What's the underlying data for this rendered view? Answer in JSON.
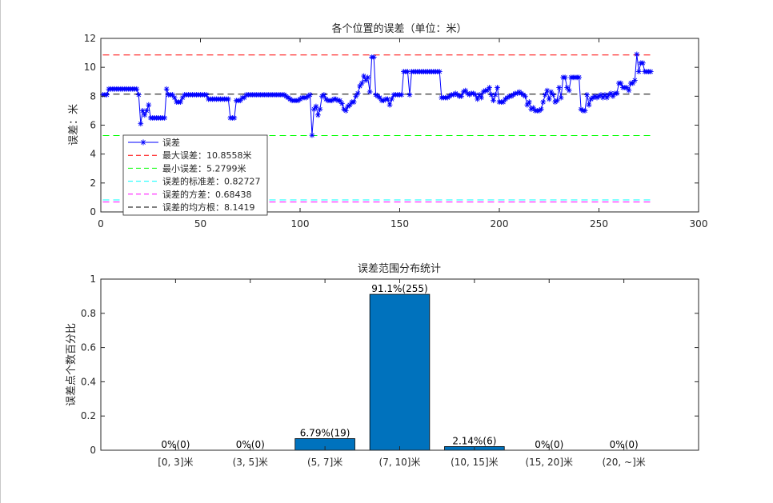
{
  "chart_data": [
    {
      "type": "line",
      "title": "各个位置的误差（单位：米）",
      "xlabel": "",
      "ylabel": "误差：米",
      "xlim": [
        0,
        300
      ],
      "ylim": [
        0,
        12
      ],
      "xticks": [
        0,
        50,
        100,
        150,
        200,
        250,
        300
      ],
      "yticks": [
        0,
        2,
        4,
        6,
        8,
        10,
        12
      ],
      "legend_position": "bottom-left",
      "series": [
        {
          "name": "误差",
          "color": "#0000ff",
          "marker": "asterisk",
          "x_start": 1,
          "x_step": 1,
          "values": [
            8.1,
            8.1,
            8.1,
            8.5,
            8.5,
            8.5,
            8.5,
            8.5,
            8.5,
            8.5,
            8.5,
            8.5,
            8.5,
            8.5,
            8.5,
            8.5,
            8.5,
            8.5,
            8.1,
            6.1,
            7.0,
            6.7,
            7.0,
            7.4,
            6.5,
            6.5,
            6.5,
            6.5,
            6.5,
            6.5,
            6.5,
            6.5,
            8.5,
            8.1,
            8.1,
            8.1,
            7.9,
            7.6,
            7.6,
            7.6,
            7.9,
            8.1,
            8.1,
            8.1,
            8.1,
            8.1,
            8.1,
            8.1,
            8.1,
            8.1,
            8.1,
            8.1,
            8.1,
            7.8,
            7.8,
            7.8,
            7.8,
            7.8,
            7.8,
            7.8,
            7.8,
            7.8,
            7.8,
            7.8,
            6.5,
            6.5,
            6.5,
            7.7,
            7.7,
            7.7,
            7.9,
            7.9,
            8.1,
            8.1,
            8.1,
            8.1,
            8.1,
            8.1,
            8.1,
            8.1,
            8.1,
            8.1,
            8.1,
            8.1,
            8.1,
            8.1,
            8.1,
            8.1,
            8.1,
            8.1,
            8.1,
            8.1,
            8.0,
            7.9,
            7.8,
            7.7,
            7.7,
            7.7,
            7.7,
            7.8,
            7.9,
            7.9,
            7.9,
            8.0,
            8.1,
            5.3,
            7.1,
            7.3,
            6.7,
            7.1,
            8.0,
            8.1,
            7.8,
            7.7,
            7.7,
            7.7,
            7.8,
            7.8,
            7.7,
            7.7,
            7.5,
            7.1,
            7.0,
            7.3,
            7.4,
            7.6,
            7.6,
            8.0,
            8.2,
            8.7,
            8.9,
            9.4,
            9.1,
            9.3,
            8.3,
            10.7,
            10.7,
            8.1,
            8.0,
            7.9,
            7.7,
            7.7,
            7.8,
            7.8,
            7.4,
            7.8,
            8.1,
            8.1,
            8.1,
            8.1,
            8.1,
            9.7,
            9.7,
            9.7,
            8.1,
            9.7,
            9.7,
            9.7,
            9.7,
            9.7,
            9.7,
            9.7,
            9.7,
            9.7,
            9.7,
            9.7,
            9.7,
            9.7,
            9.7,
            9.7,
            7.9,
            7.9,
            7.9,
            7.9,
            8.0,
            8.1,
            8.1,
            8.2,
            8.1,
            8.0,
            8.0,
            8.3,
            8.4,
            8.2,
            8.1,
            8.2,
            8.2,
            8.1,
            7.8,
            8.1,
            7.9,
            8.3,
            8.4,
            8.4,
            8.6,
            8.1,
            7.7,
            8.1,
            8.6,
            7.6,
            7.6,
            7.6,
            7.8,
            7.9,
            8.0,
            8.0,
            8.1,
            8.2,
            8.2,
            8.3,
            8.2,
            8.1,
            8.0,
            7.4,
            7.6,
            7.1,
            7.2,
            7.0,
            7.0,
            7.0,
            7.1,
            7.6,
            8.1,
            8.4,
            7.8,
            8.3,
            8.1,
            7.6,
            7.7,
            8.6,
            7.9,
            9.3,
            9.3,
            8.6,
            8.4,
            9.3,
            9.3,
            9.3,
            9.3,
            9.3,
            7.1,
            7.0,
            7.0,
            8.1,
            7.4,
            7.8,
            7.9,
            8.0,
            7.9,
            8.0,
            8.1,
            7.9,
            8.1,
            7.9,
            8.1,
            8.2,
            8.0,
            8.2,
            8.2,
            8.9,
            8.9,
            8.6,
            8.6,
            8.6,
            8.4,
            8.9,
            8.9,
            9.1,
            10.9,
            9.7,
            10.3,
            10.3,
            9.7,
            9.7,
            9.7,
            9.7
          ]
        },
        {
          "name": "最大误差：10.8558米",
          "color": "#ff0000",
          "style": "dashed",
          "value": 10.8558
        },
        {
          "name": "最小误差：5.2799米",
          "color": "#00ff00",
          "style": "dashed",
          "value": 5.2799
        },
        {
          "name": "误差的标准差：0.82727",
          "color": "#00ffff",
          "style": "dashed",
          "value": 0.82727
        },
        {
          "name": "误差的方差：0.68438",
          "color": "#ff00ff",
          "style": "dashed",
          "value": 0.68438
        },
        {
          "name": "误差的均方根：8.1419",
          "color": "#000000",
          "style": "dashed",
          "value": 8.1419
        }
      ]
    },
    {
      "type": "bar",
      "title": "误差范围分布统计",
      "xlabel": "",
      "ylabel": "误差点个数百分比",
      "ylim": [
        0,
        1
      ],
      "yticks": [
        "0",
        "0.2",
        "0.4",
        "0.6",
        "0.8",
        "1"
      ],
      "bar_color": "#0072bd",
      "categories": [
        "[0, 3]米",
        "(3, 5]米",
        "(5, 7]米",
        "(7, 10]米",
        "(10, 15]米",
        "(15, 20]米",
        "(20, ~]米"
      ],
      "values": [
        0,
        0,
        0.0679,
        0.911,
        0.0214,
        0,
        0
      ],
      "data_labels": [
        "0%(0)",
        "0%(0)",
        "6.79%(19)",
        "91.1%(255)",
        "2.14%(6)",
        "0%(0)",
        "0%(0)"
      ]
    }
  ]
}
